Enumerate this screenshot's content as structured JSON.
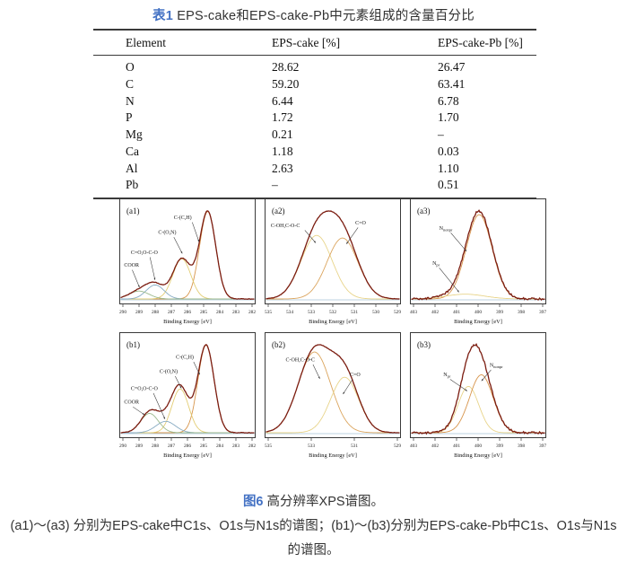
{
  "accent_color": "#4472c4",
  "table": {
    "tag": "表1",
    "title": "EPS-cake和EPS-cake-Pb中元素组成的含量百分比",
    "columns": [
      "Element",
      "EPS-cake [%]",
      "EPS-cake-Pb [%]"
    ],
    "rows": [
      [
        "O",
        "28.62",
        "26.47"
      ],
      [
        "C",
        "59.20",
        "63.41"
      ],
      [
        "N",
        "6.44",
        "6.78"
      ],
      [
        "P",
        "1.72",
        "1.70"
      ],
      [
        "Mg",
        "0.21",
        "–"
      ],
      [
        "Ca",
        "1.18",
        "0.03"
      ],
      [
        "Al",
        "2.63",
        "1.10"
      ],
      [
        "Pb",
        "–",
        "0.51"
      ]
    ]
  },
  "caption": {
    "tag": "图6",
    "title": "高分辨率XPS谱图。",
    "description": "(a1)～(a3) 分别为EPS-cake中C1s、O1s与N1s的谱图；(b1)～(b3)分别为EPS-cake-Pb中C1s、O1s与N1s的谱图。"
  },
  "chart_data": [
    {
      "type": "line",
      "id": "a1",
      "panel_label": "(a1)",
      "xlabel": "Binding Energy [eV]",
      "x_left": 290,
      "x_right": 282,
      "x_ticks": [
        290,
        289,
        288,
        287,
        286,
        285,
        284,
        283,
        282
      ],
      "noise": 0.006,
      "envelope_color": "#7b1c10",
      "baseline_color": "#a9c4d6",
      "components": [
        {
          "name": "C-(C,H)",
          "center": 284.75,
          "amplitude": 1.0,
          "sigma": 0.5,
          "color": "#d7954c"
        },
        {
          "name": "C-(O,N)",
          "center": 286.35,
          "amplitude": 0.46,
          "sigma": 0.55,
          "color": "#e3cd74"
        },
        {
          "name": "C=O,O-C-O",
          "center": 288.0,
          "amplitude": 0.16,
          "sigma": 0.55,
          "color": "#86aac2"
        },
        {
          "name": "COOR",
          "center": 289.0,
          "amplitude": 0.09,
          "sigma": 0.62,
          "color": "#9cba8e"
        }
      ],
      "annotations": [
        {
          "text": "C-(C,H)",
          "tx": 0.4,
          "ty": 0.195,
          "x1": 0.535,
          "y1": 0.225,
          "x2": 0.585,
          "y2": 0.41
        },
        {
          "text": "C-(O,N)",
          "tx": 0.285,
          "ty": 0.335,
          "x1": 0.4,
          "y1": 0.365,
          "x2": 0.462,
          "y2": 0.52
        },
        {
          "text": "C=O,O-C-O",
          "tx": 0.085,
          "ty": 0.525,
          "x1": 0.225,
          "y1": 0.555,
          "x2": 0.262,
          "y2": 0.77
        },
        {
          "text": "COOR",
          "tx": 0.035,
          "ty": 0.645,
          "x1": 0.095,
          "y1": 0.675,
          "x2": 0.148,
          "y2": 0.84
        }
      ]
    },
    {
      "type": "line",
      "id": "a2",
      "panel_label": "(a2)",
      "xlabel": "Binding Energy [eV]",
      "x_left": 535,
      "x_right": 529,
      "x_ticks": [
        535,
        534,
        533,
        532,
        531,
        530,
        529
      ],
      "noise": 0.004,
      "envelope_color": "#7b1c10",
      "baseline_color": "#a9c4d6",
      "components": [
        {
          "name": "C-OH,C-O-C",
          "center": 532.75,
          "amplitude": 0.73,
          "sigma": 0.72,
          "color": "#e8d48a"
        },
        {
          "name": "C=O",
          "center": 531.55,
          "amplitude": 0.7,
          "sigma": 0.72,
          "color": "#dba55e"
        }
      ],
      "annotations": [
        {
          "text": "C-OH,C-O-C",
          "tx": 0.045,
          "ty": 0.27,
          "x1": 0.295,
          "y1": 0.3,
          "x2": 0.375,
          "y2": 0.42
        },
        {
          "text": "C=O",
          "tx": 0.665,
          "ty": 0.245,
          "x1": 0.685,
          "y1": 0.275,
          "x2": 0.6,
          "y2": 0.43
        }
      ]
    },
    {
      "type": "line",
      "id": "a3",
      "panel_label": "(a3)",
      "xlabel": "Binding Energy [eV]",
      "x_left": 403,
      "x_right": 397,
      "x_ticks": [
        403,
        402,
        401,
        400,
        399,
        398,
        397
      ],
      "noise": 0.022,
      "envelope_color": "#7b1c10",
      "baseline_color": "#a9c4d6",
      "components": [
        {
          "name": "N_nonpr",
          "center": 399.95,
          "amplitude": 0.97,
          "sigma": 0.6,
          "color": "#d7954c"
        },
        {
          "name": "N_pr",
          "center": 400.6,
          "amplitude": 0.055,
          "sigma": 0.9,
          "color": "#e8d48a"
        }
      ],
      "annotations": [
        {
          "text": "N_nonpr",
          "tx": 0.215,
          "ty": 0.295,
          "x1": 0.3,
          "y1": 0.325,
          "x2": 0.415,
          "y2": 0.5
        },
        {
          "text": "N_pr",
          "tx": 0.165,
          "ty": 0.625,
          "x1": 0.215,
          "y1": 0.655,
          "x2": 0.36,
          "y2": 0.885
        }
      ]
    },
    {
      "type": "line",
      "id": "b1",
      "panel_label": "(b1)",
      "xlabel": "Binding Energy [eV]",
      "x_left": 290,
      "x_right": 282,
      "x_ticks": [
        290,
        289,
        288,
        287,
        286,
        285,
        284,
        283,
        282
      ],
      "noise": 0.006,
      "envelope_color": "#7b1c10",
      "baseline_color": "#a9c4d6",
      "components": [
        {
          "name": "C-(C,H)",
          "center": 284.85,
          "amplitude": 1.0,
          "sigma": 0.5,
          "color": "#d7954c"
        },
        {
          "name": "C-(O,N)",
          "center": 286.45,
          "amplitude": 0.5,
          "sigma": 0.52,
          "color": "#e3cd74"
        },
        {
          "name": "C=O,O-C-O",
          "center": 287.35,
          "amplitude": 0.13,
          "sigma": 0.6,
          "color": "#86aac2"
        },
        {
          "name": "COOR",
          "center": 288.35,
          "amplitude": 0.22,
          "sigma": 0.55,
          "color": "#9cba8e"
        }
      ],
      "annotations": [
        {
          "text": "C-(C,H)",
          "tx": 0.415,
          "ty": 0.25,
          "x1": 0.545,
          "y1": 0.28,
          "x2": 0.59,
          "y2": 0.4
        },
        {
          "text": "C-(O,N)",
          "tx": 0.295,
          "ty": 0.385,
          "x1": 0.41,
          "y1": 0.415,
          "x2": 0.455,
          "y2": 0.53
        },
        {
          "text": "C=O,O-C-O",
          "tx": 0.085,
          "ty": 0.545,
          "x1": 0.25,
          "y1": 0.575,
          "x2": 0.335,
          "y2": 0.82
        },
        {
          "text": "COOR",
          "tx": 0.035,
          "ty": 0.675,
          "x1": 0.1,
          "y1": 0.705,
          "x2": 0.185,
          "y2": 0.78
        }
      ]
    },
    {
      "type": "line",
      "id": "b2",
      "panel_label": "(b2)",
      "xlabel": "Binding Energy [eV]",
      "x_left": 535,
      "x_right": 529,
      "x_ticks": [
        535,
        533,
        531,
        529
      ],
      "noise": 0.004,
      "envelope_color": "#7b1c10",
      "baseline_color": "#a9c4d6",
      "components": [
        {
          "name": "C-OH,C-O-C",
          "center": 532.85,
          "amplitude": 0.8,
          "sigma": 0.75,
          "color": "#dba55e"
        },
        {
          "name": "C=O",
          "center": 531.45,
          "amplitude": 0.55,
          "sigma": 0.65,
          "color": "#e8d48a"
        }
      ],
      "annotations": [
        {
          "text": "C-OH,C-O-C",
          "tx": 0.155,
          "ty": 0.275,
          "x1": 0.355,
          "y1": 0.305,
          "x2": 0.405,
          "y2": 0.44
        },
        {
          "text": "C=O",
          "tx": 0.625,
          "ty": 0.415,
          "x1": 0.645,
          "y1": 0.445,
          "x2": 0.575,
          "y2": 0.585
        }
      ]
    },
    {
      "type": "line",
      "id": "b3",
      "panel_label": "(b3)",
      "xlabel": "Binding Energy [eV]",
      "x_left": 403,
      "x_right": 397,
      "x_ticks": [
        403,
        402,
        401,
        400,
        399,
        398,
        397
      ],
      "noise": 0.022,
      "envelope_color": "#7b1c10",
      "baseline_color": "#a9c4d6",
      "components": [
        {
          "name": "N_pr",
          "center": 400.45,
          "amplitude": 0.6,
          "sigma": 0.48,
          "color": "#e8d48a"
        },
        {
          "name": "N_nonpr",
          "center": 399.85,
          "amplitude": 0.75,
          "sigma": 0.55,
          "color": "#d7954c"
        }
      ],
      "annotations": [
        {
          "text": "N_pr",
          "tx": 0.245,
          "ty": 0.415,
          "x1": 0.295,
          "y1": 0.445,
          "x2": 0.42,
          "y2": 0.555
        },
        {
          "text": "N_nonpr",
          "tx": 0.585,
          "ty": 0.325,
          "x1": 0.595,
          "y1": 0.355,
          "x2": 0.525,
          "y2": 0.46
        }
      ]
    }
  ]
}
